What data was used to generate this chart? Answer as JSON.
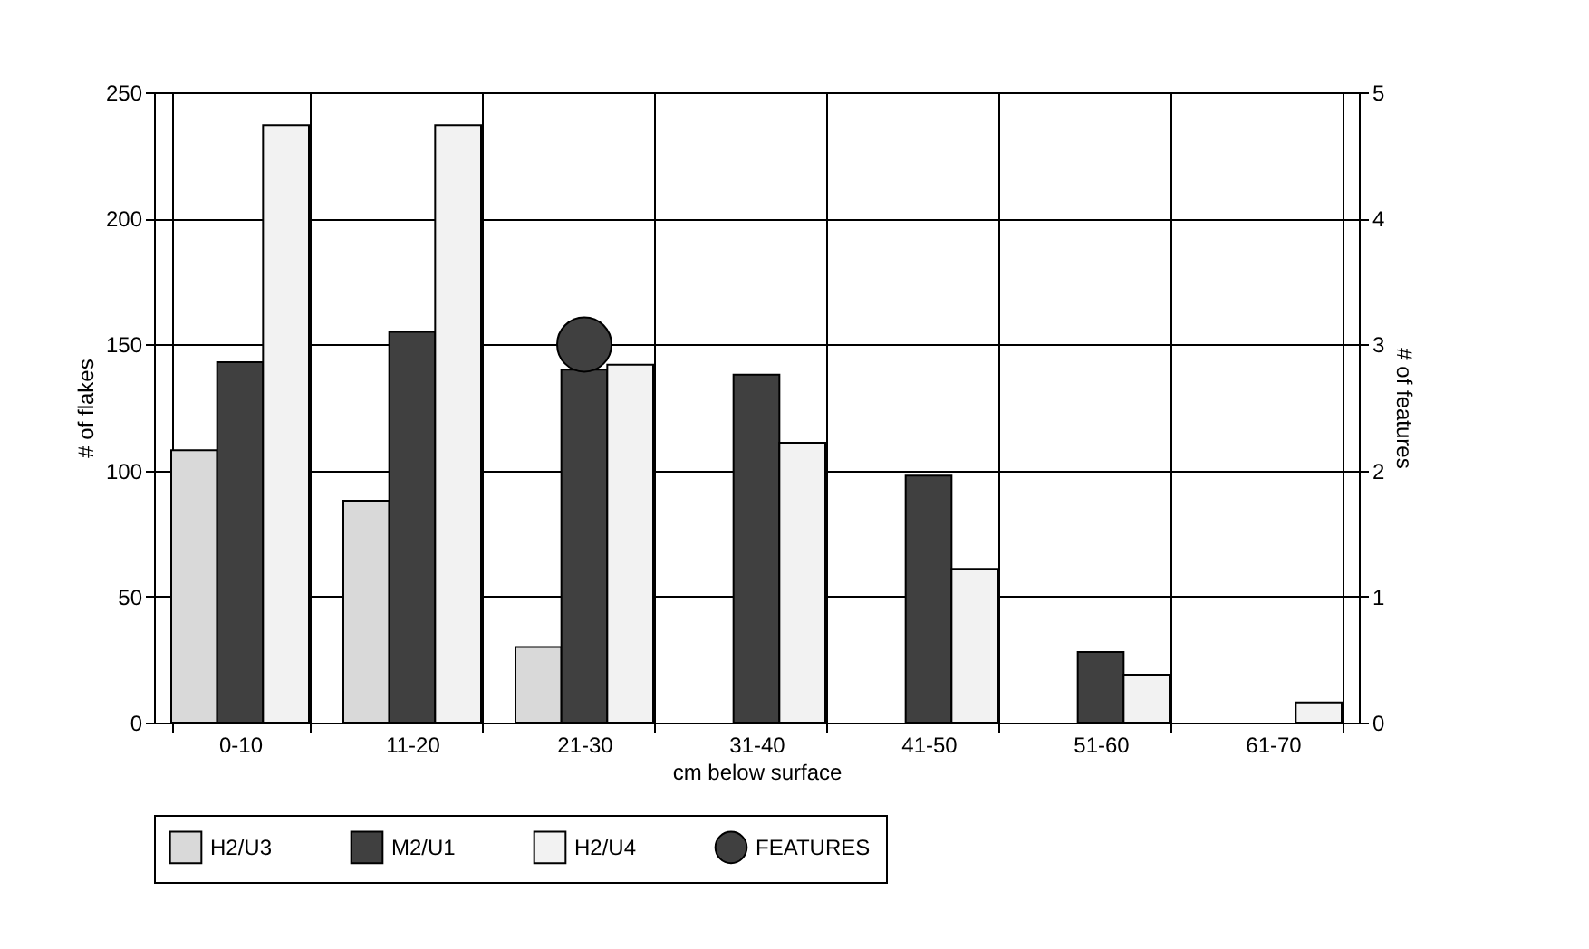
{
  "chart_data": {
    "type": "bar",
    "xlabel": "cm below surface",
    "ylabel": "# of flakes",
    "y2label": "# of features",
    "categories": [
      "0-10",
      "11-20",
      "21-30",
      "31-40",
      "41-50",
      "51-60",
      "61-70"
    ],
    "series": [
      {
        "name": "H2/U3",
        "color": "#d9d9d9",
        "values": [
          108,
          88,
          30,
          null,
          null,
          null,
          null
        ]
      },
      {
        "name": "M2/U1",
        "color": "#404040",
        "values": [
          143,
          155,
          140,
          138,
          98,
          28,
          null
        ]
      },
      {
        "name": "H2/U4",
        "color": "#f2f2f2",
        "values": [
          237,
          237,
          142,
          111,
          61,
          19,
          8
        ]
      },
      {
        "name": "FEATURES",
        "color": "#404040",
        "type": "scatter",
        "axis": "y2",
        "marker": "circle",
        "values": [
          null,
          null,
          3,
          null,
          null,
          null,
          null
        ]
      }
    ],
    "ylim": [
      0,
      250
    ],
    "yticks": [
      0,
      50,
      100,
      150,
      200,
      250
    ],
    "y2lim": [
      0,
      5
    ],
    "y2ticks": [
      0,
      1,
      2,
      3,
      4,
      5
    ],
    "grid": true,
    "legend": "bottom"
  }
}
